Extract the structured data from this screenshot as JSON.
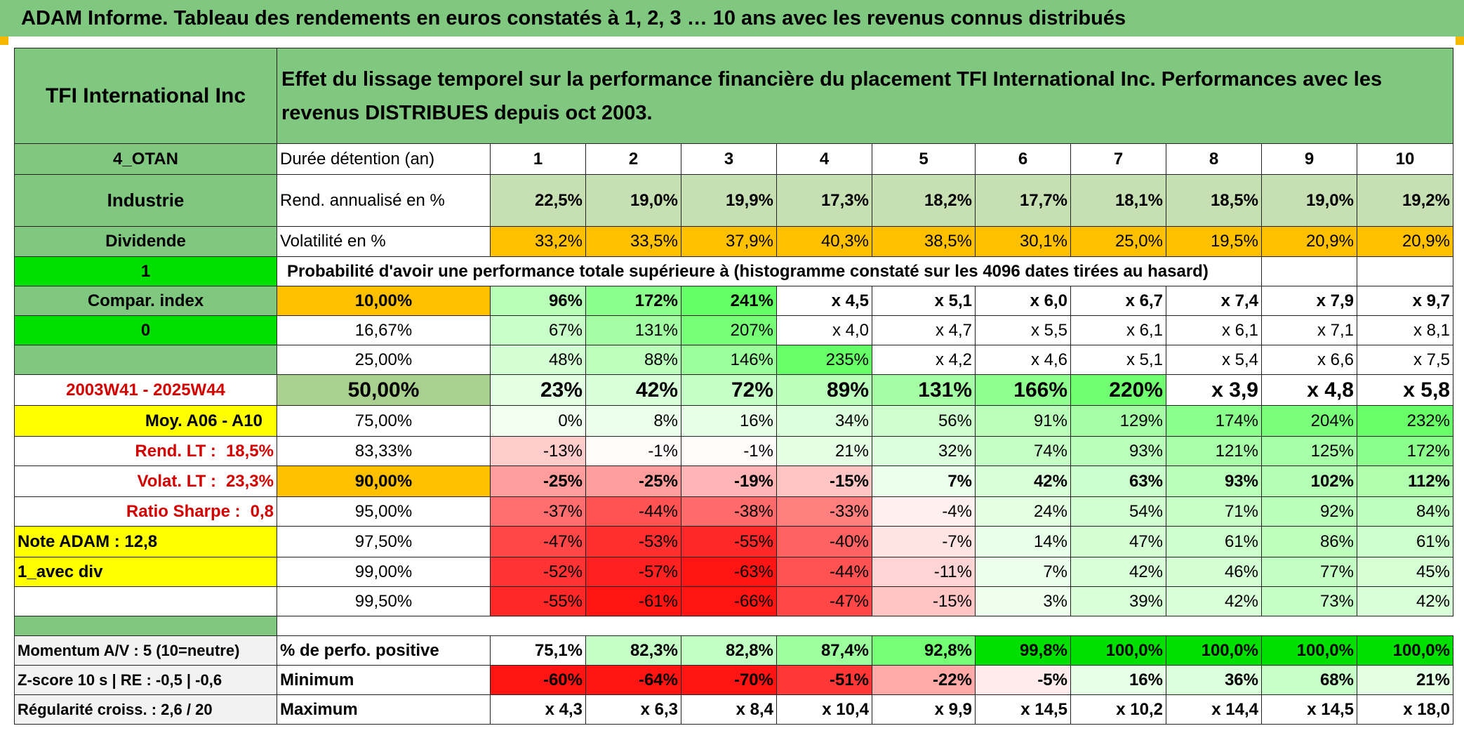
{
  "banner": "ADAM Informe. Tableau des rendements en euros constatés à 1, 2, 3 … 10 ans avec les revenus connus distribués",
  "company": "TFI International Inc",
  "description": "Effet du lissage temporel sur la performance financière du placement TFI International Inc. Performances avec les revenus DISTRIBUES depuis oct 2003.",
  "left": {
    "code": "4_OTAN",
    "sector": "Industrie",
    "dividend": "Dividende",
    "one": "1",
    "compar": "Compar. index",
    "zero": "0",
    "period": "2003W41 - 2025W44",
    "moy": "Moy. A06 - A10",
    "rend_lt_label": "Rend. LT :",
    "rend_lt_value": "18,5%",
    "volat_lt_label": "Volat. LT :",
    "volat_lt_value": "23,3%",
    "sharpe_label": "Ratio Sharpe :",
    "sharpe_value": "0,8",
    "note": "Note ADAM : 12,8",
    "avec_div": "1_avec div",
    "momentum": "Momentum A/V : 5 (10=neutre)",
    "zscore": "Z-score 10 s | RE : -0,5 | -0,6",
    "regularite": "Régularité croiss. : 2,6 / 20"
  },
  "header": {
    "duree_label": "Durée détention (an)",
    "years": [
      "1",
      "2",
      "3",
      "4",
      "5",
      "6",
      "7",
      "8",
      "9",
      "10"
    ]
  },
  "rend": {
    "label": "Rend. annualisé en %",
    "values": [
      "22,5%",
      "19,0%",
      "19,9%",
      "17,3%",
      "18,2%",
      "17,7%",
      "18,1%",
      "18,5%",
      "19,0%",
      "19,2%"
    ]
  },
  "volat": {
    "label": "Volatilité en %",
    "values": [
      "33,2%",
      "33,5%",
      "37,9%",
      "40,3%",
      "38,5%",
      "30,1%",
      "25,0%",
      "19,5%",
      "20,9%",
      "20,9%"
    ]
  },
  "proba_label": "Probabilité d'avoir une performance totale supérieure à (histogramme constaté sur les 4096 dates tirées au hasard)",
  "prob_rows": [
    {
      "p": "10,00%",
      "v": [
        "96%",
        "172%",
        "241%",
        "x 4,5",
        "x 5,1",
        "x 6,0",
        "x 6,7",
        "x 7,4",
        "x 7,9",
        "x 9,7"
      ]
    },
    {
      "p": "16,67%",
      "v": [
        "67%",
        "131%",
        "207%",
        "x 4,0",
        "x 4,7",
        "x 5,5",
        "x 6,1",
        "x 6,1",
        "x 7,1",
        "x 8,1"
      ]
    },
    {
      "p": "25,00%",
      "v": [
        "48%",
        "88%",
        "146%",
        "235%",
        "x 4,2",
        "x 4,6",
        "x 5,1",
        "x 5,4",
        "x 6,6",
        "x 7,5"
      ]
    },
    {
      "p": "50,00%",
      "v": [
        "23%",
        "42%",
        "72%",
        "89%",
        "131%",
        "166%",
        "220%",
        "x 3,9",
        "x 4,8",
        "x 5,8"
      ]
    },
    {
      "p": "75,00%",
      "v": [
        "0%",
        "8%",
        "16%",
        "34%",
        "56%",
        "91%",
        "129%",
        "174%",
        "204%",
        "232%"
      ]
    },
    {
      "p": "83,33%",
      "v": [
        "-13%",
        "-1%",
        "-1%",
        "21%",
        "32%",
        "74%",
        "93%",
        "121%",
        "125%",
        "172%"
      ]
    },
    {
      "p": "90,00%",
      "v": [
        "-25%",
        "-25%",
        "-19%",
        "-15%",
        "7%",
        "42%",
        "63%",
        "93%",
        "102%",
        "112%"
      ]
    },
    {
      "p": "95,00%",
      "v": [
        "-37%",
        "-44%",
        "-38%",
        "-33%",
        "-4%",
        "24%",
        "54%",
        "71%",
        "92%",
        "84%"
      ]
    },
    {
      "p": "97,50%",
      "v": [
        "-47%",
        "-53%",
        "-55%",
        "-40%",
        "-7%",
        "14%",
        "47%",
        "61%",
        "86%",
        "61%"
      ]
    },
    {
      "p": "99,00%",
      "v": [
        "-52%",
        "-57%",
        "-63%",
        "-44%",
        "-11%",
        "7%",
        "42%",
        "46%",
        "77%",
        "45%"
      ]
    },
    {
      "p": "99,50%",
      "v": [
        "-55%",
        "-61%",
        "-66%",
        "-47%",
        "-15%",
        "3%",
        "39%",
        "42%",
        "73%",
        "42%"
      ]
    }
  ],
  "positive": {
    "label": "% de perfo. positive",
    "values": [
      "75,1%",
      "82,3%",
      "82,8%",
      "87,4%",
      "92,8%",
      "99,8%",
      "100,0%",
      "100,0%",
      "100,0%",
      "100,0%"
    ]
  },
  "minimum": {
    "label": "Minimum",
    "values": [
      "-60%",
      "-64%",
      "-70%",
      "-51%",
      "-22%",
      "-5%",
      "16%",
      "36%",
      "68%",
      "21%"
    ]
  },
  "maximum": {
    "label": "Maximum",
    "values": [
      "x 4,3",
      "x 6,3",
      "x 8,4",
      "x 10,4",
      "x 9,9",
      "x 14,5",
      "x 10,2",
      "x 14,4",
      "x 14,5",
      "x 18,0"
    ]
  },
  "colors": {
    "green_header": "#80c880",
    "orange": "#ffc000",
    "yellow": "#ffff00",
    "bright_green": "#00e000",
    "red_text": "#d40000"
  }
}
